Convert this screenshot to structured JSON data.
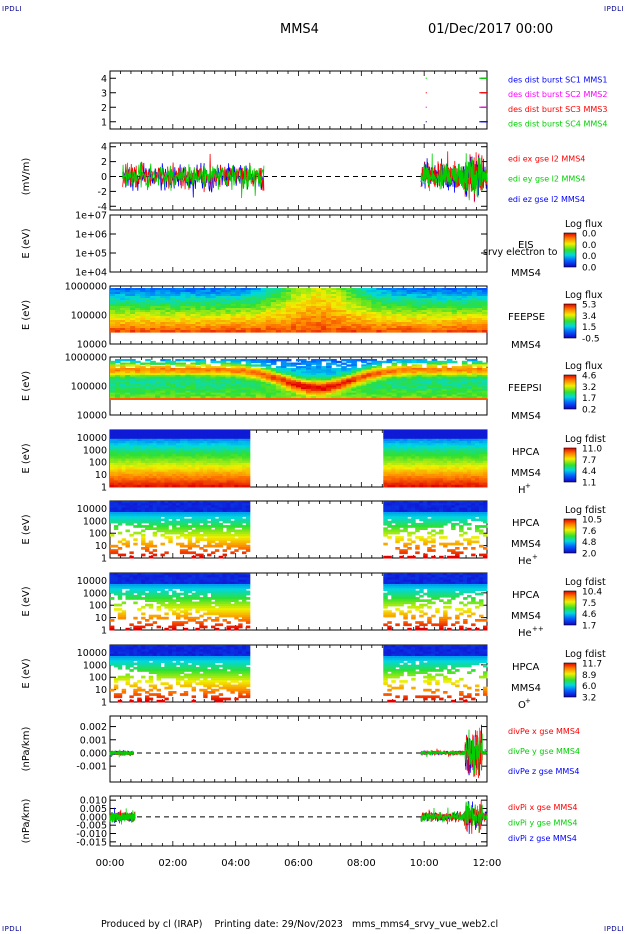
{
  "header": {
    "corner_label": "IPDLI",
    "spacecraft": "MMS4",
    "datetime": "01/Dec/2017 00:00"
  },
  "footer": {
    "produced_by": "Produced by cl (IRAP)",
    "printing_date": "Printing date: 29/Nov/2023",
    "script_name": "mms_mms4_srvy_vue_web2.cl"
  },
  "colors": {
    "red": "#ff0000",
    "green": "#00d000",
    "blue": "#0000ff",
    "magenta": "#ff00ff",
    "navy": "#00008b"
  },
  "chart_data": {
    "type": "line",
    "x_tick_labels": [
      "00:00",
      "02:00",
      "04:00",
      "06:00",
      "08:00",
      "10:00",
      "12:00"
    ],
    "xlim_hours": [
      0,
      12
    ],
    "panels": [
      {
        "id": "burst",
        "type": "line",
        "ylabel": "",
        "ylim": [
          0.5,
          4.5
        ],
        "y_ticks": [
          "1",
          "2",
          "3",
          "4"
        ],
        "legend": [
          {
            "name": "des dist burst SC1 MMS1",
            "color": "#0000ff"
          },
          {
            "name": "des dist burst SC2 MMS2",
            "color": "#ff00ff"
          },
          {
            "name": "des dist burst SC3 MMS3",
            "color": "#ff0000"
          },
          {
            "name": "des dist burst SC4 MMS4",
            "color": "#00d000"
          }
        ],
        "series": [
          {
            "name": "des dist burst SC1 MMS1",
            "y": 1,
            "x_hours": [
              10.05,
              11.5,
              11.6,
              11.7,
              11.8,
              11.9
            ]
          },
          {
            "name": "des dist burst SC2 MMS2",
            "y": 2,
            "x_hours": [
              10.05,
              11.5,
              11.6,
              11.7,
              11.8,
              11.9
            ]
          },
          {
            "name": "des dist burst SC3 MMS3",
            "y": 3,
            "x_hours": [
              10.05,
              11.5,
              11.6,
              11.7,
              11.8,
              11.9
            ]
          },
          {
            "name": "des dist burst SC4 MMS4",
            "y": 4,
            "x_hours": [
              10.05,
              11.5,
              11.6,
              11.7,
              11.8,
              11.9
            ]
          }
        ]
      },
      {
        "id": "edi",
        "type": "line",
        "ylabel": "(mV/m)",
        "ylim": [
          -4.5,
          4.5
        ],
        "y_ticks": [
          "4",
          "2",
          "0",
          "-2",
          "-4"
        ],
        "legend": [
          {
            "name": "edi ex gse l2 MMS4",
            "color": "#ff0000"
          },
          {
            "name": "edi ey gse l2 MMS4",
            "color": "#00d000"
          },
          {
            "name": "edi ez gse l2 MMS4",
            "color": "#0000ff"
          }
        ],
        "data_intervals_hours": [
          [
            0.4,
            4.9
          ],
          [
            9.9,
            12.0
          ]
        ],
        "typical_amplitude": 1.5,
        "max_amplitude": 4
      },
      {
        "id": "eis",
        "type": "heatmap",
        "ylabel": "E (eV)",
        "y_scale": "log",
        "ylim": [
          10000,
          10000000
        ],
        "y_ticks": [
          "1e+07",
          "1e+06",
          "1e+05",
          "1e+04"
        ],
        "instrument": "EIS",
        "spacecraft": "MMS4",
        "overlay_text": "srvy electron to",
        "colorbar": {
          "title": "Log flux",
          "ticks": [
            "0.0",
            "0.0",
            "0.0",
            "0.0"
          ]
        }
      },
      {
        "id": "feepse",
        "type": "heatmap",
        "ylabel": "E (eV)",
        "y_scale": "log",
        "ylim": [
          10000,
          1000000
        ],
        "y_ticks": [
          "1000000",
          "100000",
          "10000"
        ],
        "instrument": "FEEPSE",
        "spacecraft": "MMS4",
        "colorbar": {
          "title": "Log flux",
          "ticks": [
            "5.3",
            "3.4",
            "1.5",
            "-0.5"
          ]
        }
      },
      {
        "id": "feepsi",
        "type": "heatmap",
        "ylabel": "E (eV)",
        "y_scale": "log",
        "ylim": [
          10000,
          1000000
        ],
        "y_ticks": [
          "1000000",
          "100000",
          "10000"
        ],
        "instrument": "FEEPSI",
        "spacecraft": "MMS4",
        "colorbar": {
          "title": "Log flux",
          "ticks": [
            "4.6",
            "3.2",
            "1.7",
            "0.2"
          ]
        }
      },
      {
        "id": "hpca_h",
        "type": "heatmap",
        "ylabel": "E (eV)",
        "y_scale": "log",
        "ylim": [
          1,
          40000
        ],
        "y_ticks": [
          "10000",
          "1000",
          "100",
          "10",
          "1"
        ],
        "instrument": "HPCA",
        "spacecraft": "MMS4",
        "species": "H",
        "species_charge": "+",
        "data_intervals_hours": [
          [
            0,
            4.45
          ],
          [
            8.7,
            12.0
          ]
        ],
        "colorbar": {
          "title": "Log fdist",
          "ticks": [
            "11.0",
            "7.7",
            "4.4",
            "1.1"
          ]
        }
      },
      {
        "id": "hpca_he",
        "type": "heatmap",
        "ylabel": "E (eV)",
        "y_scale": "log",
        "ylim": [
          1,
          40000
        ],
        "y_ticks": [
          "10000",
          "1000",
          "100",
          "10",
          "1"
        ],
        "instrument": "HPCA",
        "spacecraft": "MMS4",
        "species": "He",
        "species_charge": "+",
        "data_intervals_hours": [
          [
            0,
            4.45
          ],
          [
            8.7,
            12.0
          ]
        ],
        "colorbar": {
          "title": "Log fdist",
          "ticks": [
            "10.5",
            "7.6",
            "4.8",
            "2.0"
          ]
        }
      },
      {
        "id": "hpca_hepp",
        "type": "heatmap",
        "ylabel": "E (eV)",
        "y_scale": "log",
        "ylim": [
          1,
          40000
        ],
        "y_ticks": [
          "10000",
          "1000",
          "100",
          "10",
          "1"
        ],
        "instrument": "HPCA",
        "spacecraft": "MMS4",
        "species": "He",
        "species_charge": "++",
        "data_intervals_hours": [
          [
            0,
            4.45
          ],
          [
            8.7,
            12.0
          ]
        ],
        "colorbar": {
          "title": "Log fdist",
          "ticks": [
            "10.4",
            "7.5",
            "4.6",
            "1.7"
          ]
        }
      },
      {
        "id": "hpca_o",
        "type": "heatmap",
        "ylabel": "E (eV)",
        "y_scale": "log",
        "ylim": [
          1,
          40000
        ],
        "y_ticks": [
          "10000",
          "1000",
          "100",
          "10",
          "1"
        ],
        "instrument": "HPCA",
        "spacecraft": "MMS4",
        "species": "O",
        "species_charge": "+",
        "data_intervals_hours": [
          [
            0,
            4.45
          ],
          [
            8.7,
            12.0
          ]
        ],
        "colorbar": {
          "title": "Log fdist",
          "ticks": [
            "11.7",
            "8.9",
            "6.0",
            "3.2"
          ]
        }
      },
      {
        "id": "divpe",
        "type": "line",
        "ylabel": "(nPa/km)",
        "ylim": [
          -0.0022,
          0.0028
        ],
        "y_ticks": [
          "0.002",
          "0.001",
          "0.000",
          "-0.001"
        ],
        "legend": [
          {
            "name": "divPe x gse MMS4",
            "color": "#ff0000"
          },
          {
            "name": "divPe y gse MMS4",
            "color": "#00d000"
          },
          {
            "name": "divPe z gse MMS4",
            "color": "#0000ff"
          }
        ],
        "data_intervals_hours": [
          [
            0.0,
            0.75
          ],
          [
            9.9,
            12.0
          ]
        ],
        "typical_amplitude": 0.00015,
        "max_amplitude": 0.0022
      },
      {
        "id": "divpi",
        "type": "line",
        "ylabel": "(nPa/km)",
        "ylim": [
          -0.0175,
          0.0125
        ],
        "y_ticks": [
          "0.010",
          "0.005",
          "0.000",
          "-0.005",
          "-0.010",
          "-0.015"
        ],
        "legend": [
          {
            "name": "divPi x gse MMS4",
            "color": "#ff0000"
          },
          {
            "name": "divPi y gse MMS4",
            "color": "#00d000"
          },
          {
            "name": "divPi z gse MMS4",
            "color": "#0000ff"
          }
        ],
        "data_intervals_hours": [
          [
            0.0,
            0.8
          ],
          [
            9.9,
            12.0
          ]
        ],
        "typical_amplitude": 0.0025,
        "max_amplitude": 0.011
      }
    ]
  }
}
